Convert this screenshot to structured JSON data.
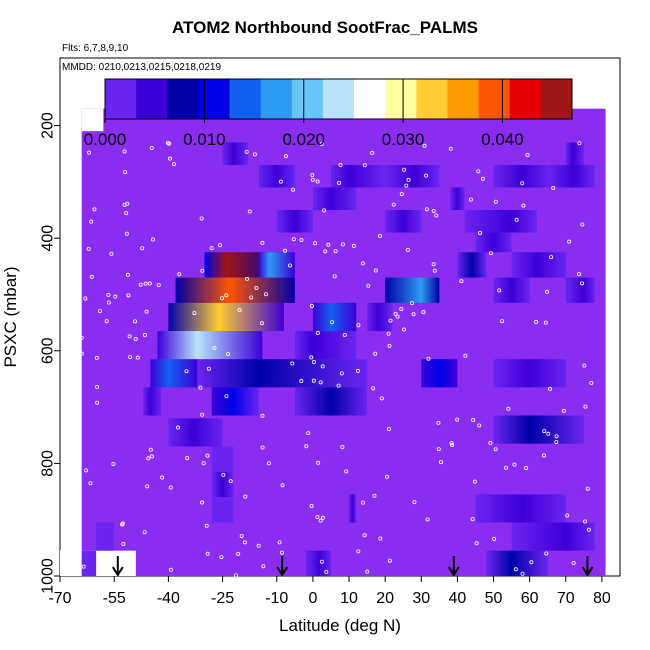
{
  "header": {
    "title": "ATOM2 Northbound SootFrac_PALMS",
    "flights_text": "Flts: 6,7,8,9,10",
    "mmdd_text": "MMDD: 0210,0213,0215,0218,0219"
  },
  "colors": {
    "background_fill": "#8b2df0",
    "scale": [
      "#6b25f0",
      "#3b00d6",
      "#0000a8",
      "#0000e8",
      "#1260f0",
      "#2f9af2",
      "#66c4f6",
      "#b9e3fb",
      "#ffffff",
      "#ffffa0",
      "#ffcc33",
      "#ff9900",
      "#ff5500",
      "#e60000",
      "#a01515"
    ]
  },
  "chart_data": {
    "type": "heatmap",
    "title": "ATOM2 Northbound SootFrac_PALMS",
    "xlabel": "Latitude (deg N)",
    "ylabel": "PSXC (mbar)",
    "xlim": [
      -70,
      85
    ],
    "ylim": [
      1000,
      80
    ],
    "y_inverted": true,
    "x_ticks": [
      "-70",
      "-55",
      "-40",
      "-25",
      "-10",
      "0",
      "10",
      "20",
      "30",
      "40",
      "50",
      "60",
      "70",
      "80"
    ],
    "x_tick_values": [
      -70,
      -55,
      -40,
      -25,
      -10,
      0,
      10,
      20,
      30,
      40,
      50,
      60,
      70,
      80
    ],
    "y_ticks": [
      "200",
      "400",
      "600",
      "800",
      "1000"
    ],
    "y_tick_values": [
      200,
      400,
      600,
      800,
      1000
    ],
    "colorbar": {
      "ticks": [
        "0.000",
        "0.010",
        "0.020",
        "0.030",
        "0.040"
      ],
      "tick_values": [
        0.0,
        0.01,
        0.02,
        0.03,
        0.04
      ],
      "range": [
        0.0,
        0.047
      ]
    },
    "data_domain": {
      "lat": [
        -64,
        81
      ],
      "p_top": 170,
      "p_bottom": 1000
    },
    "cells": [
      {
        "lat0": -30,
        "lat1": -8,
        "p0": 425,
        "p1": 470,
        "v": 0.018,
        "peak": 0.045,
        "peak_lat": -24
      },
      {
        "lat0": -38,
        "lat1": -5,
        "p0": 470,
        "p1": 515,
        "v": 0.013,
        "peak": 0.038,
        "peak_lat": -23
      },
      {
        "lat0": -40,
        "lat1": -8,
        "p0": 515,
        "p1": 565,
        "v": 0.012,
        "peak": 0.032,
        "peak_lat": -26
      },
      {
        "lat0": -43,
        "lat1": -14,
        "p0": 565,
        "p1": 615,
        "v": 0.01,
        "peak": 0.024,
        "peak_lat": -32
      },
      {
        "lat0": -45,
        "lat1": -32,
        "p0": 615,
        "p1": 665,
        "v": 0.008,
        "peak": 0.014,
        "peak_lat": -40
      },
      {
        "lat0": -32,
        "lat1": 15,
        "p0": 615,
        "p1": 665,
        "v": 0.004,
        "peak": 0.008,
        "peak_lat": -15
      },
      {
        "lat0": -47,
        "lat1": -42,
        "p0": 665,
        "p1": 715,
        "v": 0.004,
        "peak": 0.006,
        "peak_lat": -45
      },
      {
        "lat0": -28,
        "lat1": -15,
        "p0": 665,
        "p1": 715,
        "v": 0.006,
        "peak": 0.01,
        "peak_lat": -22
      },
      {
        "lat0": -15,
        "lat1": -5,
        "p0": 425,
        "p1": 470,
        "v": 0.009,
        "peak": 0.016,
        "peak_lat": -12
      },
      {
        "lat0": -5,
        "lat1": 12,
        "p0": 565,
        "p1": 615,
        "v": 0.004,
        "peak": 0.006,
        "peak_lat": 0
      },
      {
        "lat0": -5,
        "lat1": 15,
        "p0": 665,
        "p1": 715,
        "v": 0.005,
        "peak": 0.007,
        "peak_lat": 5
      },
      {
        "lat0": 0,
        "lat1": 12,
        "p0": 515,
        "p1": 565,
        "v": 0.008,
        "peak": 0.013,
        "peak_lat": 5
      },
      {
        "lat0": 20,
        "lat1": 35,
        "p0": 470,
        "p1": 515,
        "v": 0.015,
        "peak": 0.018,
        "peak_lat": 30
      },
      {
        "lat0": 15,
        "lat1": 22,
        "p0": 515,
        "p1": 565,
        "v": 0.003,
        "peak": 0.005,
        "peak_lat": 18
      },
      {
        "lat0": 30,
        "lat1": 40,
        "p0": 615,
        "p1": 665,
        "v": 0.008,
        "peak": 0.012,
        "peak_lat": 35
      },
      {
        "lat0": 40,
        "lat1": 48,
        "p0": 425,
        "p1": 470,
        "v": 0.004,
        "peak": 0.007,
        "peak_lat": 44
      },
      {
        "lat0": 50,
        "lat1": 60,
        "p0": 470,
        "p1": 515,
        "v": 0.003,
        "peak": 0.005,
        "peak_lat": 55
      },
      {
        "lat0": 45,
        "lat1": 55,
        "p0": 380,
        "p1": 425,
        "v": 0.004,
        "peak": 0.006,
        "peak_lat": 50
      },
      {
        "lat0": 55,
        "lat1": 70,
        "p0": 425,
        "p1": 470,
        "v": 0.003,
        "peak": 0.005,
        "peak_lat": 62
      },
      {
        "lat0": 70,
        "lat1": 78,
        "p0": 470,
        "p1": 515,
        "v": 0.004,
        "peak": 0.006,
        "peak_lat": 75
      },
      {
        "lat0": 50,
        "lat1": 70,
        "p0": 615,
        "p1": 665,
        "v": 0.004,
        "peak": 0.006,
        "peak_lat": 60
      },
      {
        "lat0": 50,
        "lat1": 75,
        "p0": 715,
        "p1": 765,
        "v": 0.004,
        "peak": 0.007,
        "peak_lat": 60
      },
      {
        "lat0": 45,
        "lat1": 70,
        "p0": 855,
        "p1": 905,
        "v": 0.004,
        "peak": 0.006,
        "peak_lat": 58
      },
      {
        "lat0": 55,
        "lat1": 78,
        "p0": 905,
        "p1": 955,
        "v": 0.004,
        "peak": 0.006,
        "peak_lat": 70
      },
      {
        "lat0": 48,
        "lat1": 65,
        "p0": 955,
        "p1": 1000,
        "v": 0.004,
        "peak": 0.007,
        "peak_lat": 55
      },
      {
        "lat0": -40,
        "lat1": -25,
        "p0": 720,
        "p1": 770,
        "v": 0.002,
        "peak": 0.004,
        "peak_lat": -33
      },
      {
        "lat0": -28,
        "lat1": -22,
        "p0": 770,
        "p1": 815,
        "v": 0.002,
        "peak": 0.003,
        "peak_lat": -25
      },
      {
        "lat0": -28,
        "lat1": -22,
        "p0": 815,
        "p1": 860,
        "v": 0.002,
        "peak": 0.004,
        "peak_lat": -25
      },
      {
        "lat0": -28,
        "lat1": -22,
        "p0": 860,
        "p1": 905,
        "v": 0.002,
        "peak": 0.003,
        "peak_lat": -25
      },
      {
        "lat0": -60,
        "lat1": -55,
        "p0": 905,
        "p1": 955,
        "v": 0.002,
        "peak": 0.003,
        "peak_lat": -57
      },
      {
        "lat0": -64,
        "lat1": -60,
        "p0": 955,
        "p1": 1000,
        "v": 0.002,
        "peak": 0.003,
        "peak_lat": -62
      },
      {
        "lat0": -2,
        "lat1": 5,
        "p0": 955,
        "p1": 1000,
        "v": 0.004,
        "peak": 0.006,
        "peak_lat": 2
      },
      {
        "lat0": 10,
        "lat1": 12,
        "p0": 855,
        "p1": 905,
        "v": 0.004,
        "peak": 0.006,
        "peak_lat": 11
      },
      {
        "lat0": -25,
        "lat1": -18,
        "p0": 230,
        "p1": 270,
        "v": 0.003,
        "peak": 0.005,
        "peak_lat": -22
      },
      {
        "lat0": -15,
        "lat1": -5,
        "p0": 270,
        "p1": 310,
        "v": 0.003,
        "peak": 0.005,
        "peak_lat": -10
      },
      {
        "lat0": 0,
        "lat1": 12,
        "p0": 310,
        "p1": 350,
        "v": 0.003,
        "peak": 0.005,
        "peak_lat": 5
      },
      {
        "lat0": 5,
        "lat1": 20,
        "p0": 270,
        "p1": 310,
        "v": 0.004,
        "peak": 0.006,
        "peak_lat": 10
      },
      {
        "lat0": 20,
        "lat1": 35,
        "p0": 270,
        "p1": 310,
        "v": 0.004,
        "peak": 0.006,
        "peak_lat": 28
      },
      {
        "lat0": 38,
        "lat1": 42,
        "p0": 310,
        "p1": 350,
        "v": 0.004,
        "peak": 0.006,
        "peak_lat": 40
      },
      {
        "lat0": 50,
        "lat1": 66,
        "p0": 270,
        "p1": 310,
        "v": 0.004,
        "peak": 0.006,
        "peak_lat": 58
      },
      {
        "lat0": 42,
        "lat1": 62,
        "p0": 350,
        "p1": 390,
        "v": 0.004,
        "peak": 0.006,
        "peak_lat": 55
      },
      {
        "lat0": 70,
        "lat1": 75,
        "p0": 230,
        "p1": 270,
        "v": 0.004,
        "peak": 0.006,
        "peak_lat": 72
      },
      {
        "lat0": 65,
        "lat1": 78,
        "p0": 270,
        "p1": 310,
        "v": 0.004,
        "peak": 0.006,
        "peak_lat": 72
      },
      {
        "lat0": -10,
        "lat1": 0,
        "p0": 350,
        "p1": 390,
        "v": 0.004,
        "peak": 0.006,
        "peak_lat": -5
      },
      {
        "lat0": 20,
        "lat1": 30,
        "p0": 350,
        "p1": 390,
        "v": 0.004,
        "peak": 0.006,
        "peak_lat": 25
      }
    ],
    "arrows_lat": [
      -54,
      -8.5,
      39,
      76
    ],
    "white_blocks": [
      {
        "lat0": -70,
        "lat1": -49,
        "p0": 955,
        "p1": 1000
      },
      {
        "lat0": -64,
        "lat1": -58,
        "p0": 170,
        "p1": 210
      }
    ]
  }
}
